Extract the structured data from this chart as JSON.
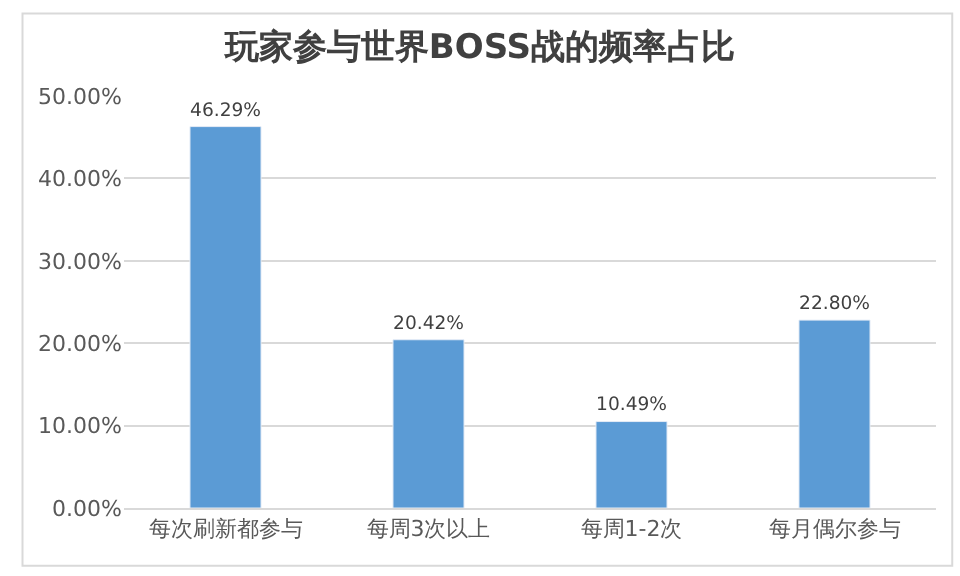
{
  "chart_data": {
    "type": "bar",
    "title": "玩家参与世界BOSS战的频率占比",
    "categories": [
      "每次刷新都参与",
      "每周3次以上",
      "每周1-2次",
      "每月偶尔参与"
    ],
    "values": [
      46.29,
      20.42,
      10.49,
      22.8
    ],
    "value_labels": [
      "46.29%",
      "20.42%",
      "10.49%",
      "22.80%"
    ],
    "color": "#5b9bd5",
    "ylim": [
      0,
      50
    ],
    "yticks": [
      {
        "value": 0,
        "label": "0.00%"
      },
      {
        "value": 10,
        "label": "10.00%"
      },
      {
        "value": 20,
        "label": "20.00%"
      },
      {
        "value": 30,
        "label": "30.00%"
      },
      {
        "value": 40,
        "label": "40.00%"
      },
      {
        "value": 50,
        "label": "50.00%"
      }
    ],
    "grid": "y"
  }
}
